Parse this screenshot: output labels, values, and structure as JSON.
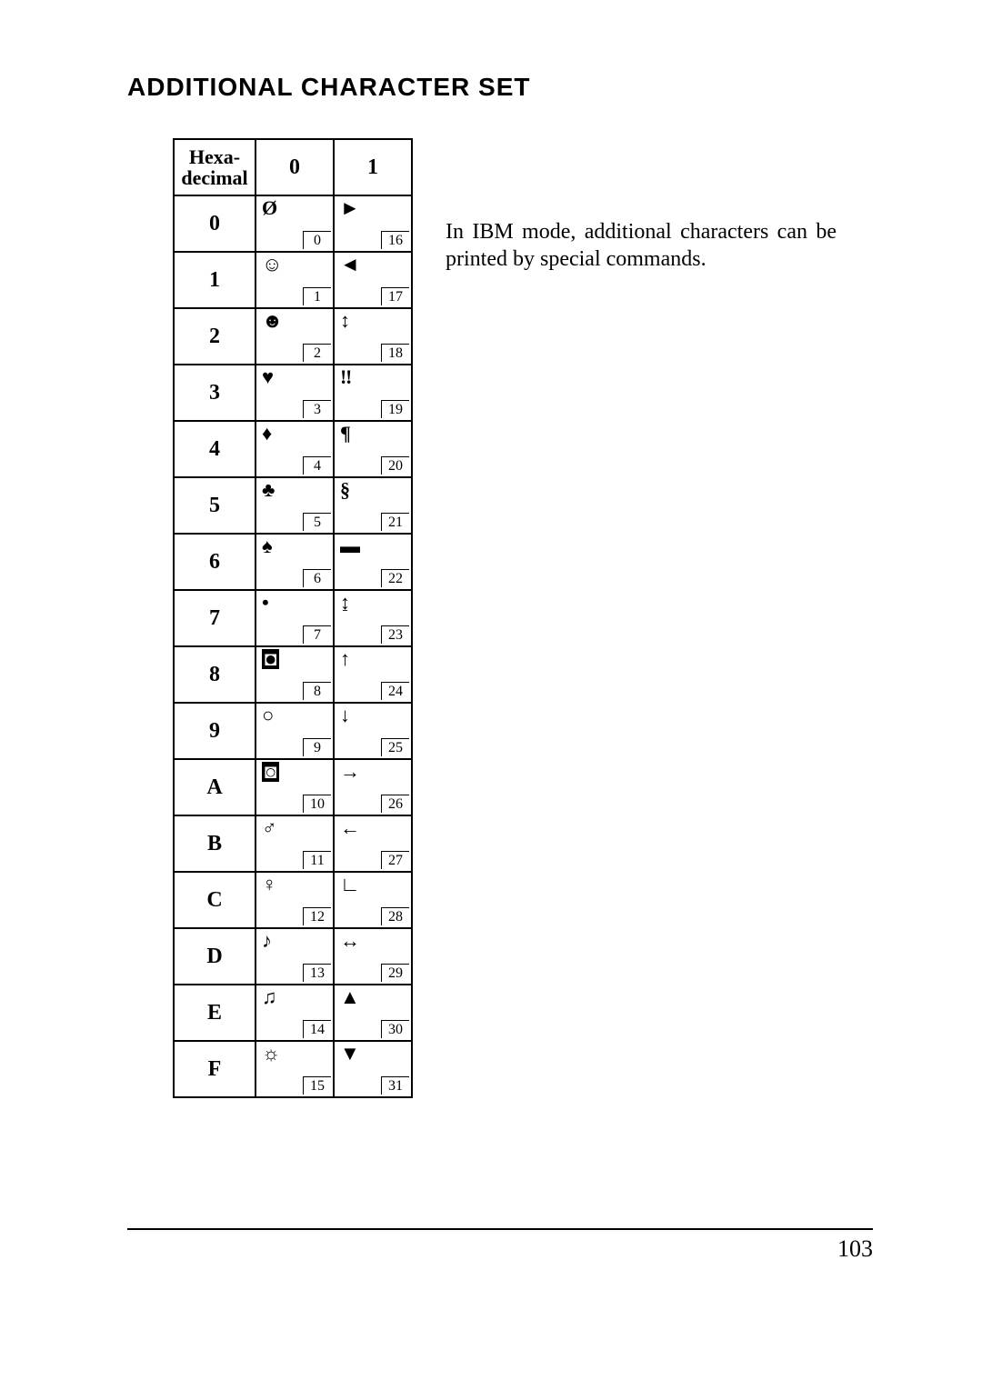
{
  "title": "ADDITIONAL CHARACTER SET",
  "side_text": "In IBM mode, additional characters can be printed by special commands.",
  "page_number": "103",
  "table": {
    "header": {
      "corner": "Hexa-\ndecimal",
      "cols": [
        "0",
        "1"
      ]
    },
    "row_keys": [
      "0",
      "1",
      "2",
      "3",
      "4",
      "5",
      "6",
      "7",
      "8",
      "9",
      "A",
      "B",
      "C",
      "D",
      "E",
      "F"
    ],
    "cells": {
      "col0": [
        {
          "glyph": "Ø",
          "dec": "0",
          "inverse": false
        },
        {
          "glyph": "☺",
          "dec": "1",
          "inverse": false
        },
        {
          "glyph": "☻",
          "dec": "2",
          "inverse": false
        },
        {
          "glyph": "♥",
          "dec": "3",
          "inverse": false
        },
        {
          "glyph": "♦",
          "dec": "4",
          "inverse": false
        },
        {
          "glyph": "♣",
          "dec": "5",
          "inverse": false
        },
        {
          "glyph": "♠",
          "dec": "6",
          "inverse": false
        },
        {
          "glyph": "•",
          "dec": "7",
          "inverse": false
        },
        {
          "glyph": "◘",
          "dec": "8",
          "inverse": true
        },
        {
          "glyph": "○",
          "dec": "9",
          "inverse": false
        },
        {
          "glyph": "◙",
          "dec": "10",
          "inverse": true
        },
        {
          "glyph": "♂",
          "dec": "11",
          "inverse": false
        },
        {
          "glyph": "♀",
          "dec": "12",
          "inverse": false
        },
        {
          "glyph": "♪",
          "dec": "13",
          "inverse": false
        },
        {
          "glyph": "♫",
          "dec": "14",
          "inverse": false
        },
        {
          "glyph": "☼",
          "dec": "15",
          "inverse": false
        }
      ],
      "col1": [
        {
          "glyph": "►",
          "dec": "16",
          "inverse": false
        },
        {
          "glyph": "◄",
          "dec": "17",
          "inverse": false
        },
        {
          "glyph": "↕",
          "dec": "18",
          "inverse": false
        },
        {
          "glyph": "‼",
          "dec": "19",
          "inverse": false
        },
        {
          "glyph": "¶",
          "dec": "20",
          "inverse": false
        },
        {
          "glyph": "§",
          "dec": "21",
          "inverse": false
        },
        {
          "glyph": "▬",
          "dec": "22",
          "inverse": false
        },
        {
          "glyph": "↨",
          "dec": "23",
          "inverse": false
        },
        {
          "glyph": "↑",
          "dec": "24",
          "inverse": false
        },
        {
          "glyph": "↓",
          "dec": "25",
          "inverse": false
        },
        {
          "glyph": "→",
          "dec": "26",
          "inverse": false
        },
        {
          "glyph": "←",
          "dec": "27",
          "inverse": false
        },
        {
          "glyph": "∟",
          "dec": "28",
          "inverse": false
        },
        {
          "glyph": "↔",
          "dec": "29",
          "inverse": false
        },
        {
          "glyph": "▲",
          "dec": "30",
          "inverse": false
        },
        {
          "glyph": "▼",
          "dec": "31",
          "inverse": false
        }
      ]
    }
  }
}
